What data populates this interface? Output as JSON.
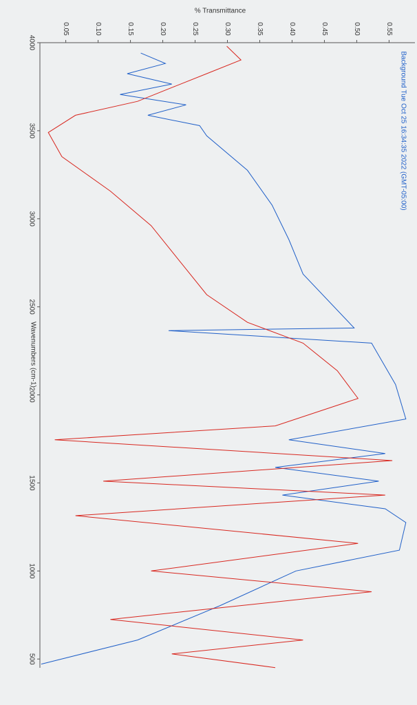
{
  "chart_data": {
    "type": "line",
    "y_label": "% Transmittance",
    "x_label": "Wavenumbers (cm-1)",
    "annotation": "Background Tue Oct 25 16:34:35 2022 (GMT-05:00)",
    "xlim": [
      4000,
      450
    ],
    "xticks": [
      4000,
      3500,
      3000,
      2500,
      2000,
      1500,
      1000,
      500
    ],
    "ylim": [
      0.01,
      0.59
    ],
    "yticks": [
      0.05,
      {
        "value": 0.1,
        "label": "0.10"
      },
      0.15,
      {
        "value": 0.2,
        "label": "0.20"
      },
      0.25,
      {
        "value": 0.3,
        "label": "0.30"
      },
      0.35,
      {
        "value": 0.4,
        "label": "0.40"
      },
      0.45,
      {
        "value": 0.5,
        "label": "0.50"
      },
      0.55
    ],
    "series": [
      {
        "color": "#1f5fc8",
        "x": [
          3941,
          3882,
          3824,
          3765,
          3706,
          3647,
          3588,
          3529,
          3471,
          3275,
          3078,
          2882,
          2686,
          2380,
          2365,
          2294,
          2059,
          1863,
          1745,
          1667,
          1588,
          1510,
          1431,
          1353,
          1275,
          1118,
          1000,
          804,
          608,
          471
        ],
        "values": [
          0.166,
          0.204,
          0.145,
          0.214,
          0.134,
          0.236,
          0.177,
          0.257,
          0.268,
          0.331,
          0.369,
          0.395,
          0.417,
          0.496,
          0.209,
          0.523,
          0.56,
          0.576,
          0.395,
          0.544,
          0.374,
          0.534,
          0.385,
          0.544,
          0.576,
          0.566,
          0.406,
          0.289,
          0.161,
          0.012
        ]
      },
      {
        "color": "#d8261e",
        "x": [
          3980,
          3902,
          3824,
          3745,
          3667,
          3588,
          3490,
          3353,
          3157,
          2961,
          2765,
          2569,
          2412,
          2294,
          2137,
          1980,
          1824,
          1745,
          1627,
          1510,
          1431,
          1314,
          1157,
          1000,
          882,
          725,
          608,
          529,
          451
        ],
        "values": [
          0.299,
          0.321,
          0.268,
          0.214,
          0.161,
          0.065,
          0.023,
          0.044,
          0.119,
          0.182,
          0.225,
          0.268,
          0.331,
          0.417,
          0.47,
          0.502,
          0.374,
          0.033,
          0.555,
          0.108,
          0.544,
          0.065,
          0.502,
          0.182,
          0.523,
          0.119,
          0.417,
          0.214,
          0.374
        ]
      }
    ]
  }
}
